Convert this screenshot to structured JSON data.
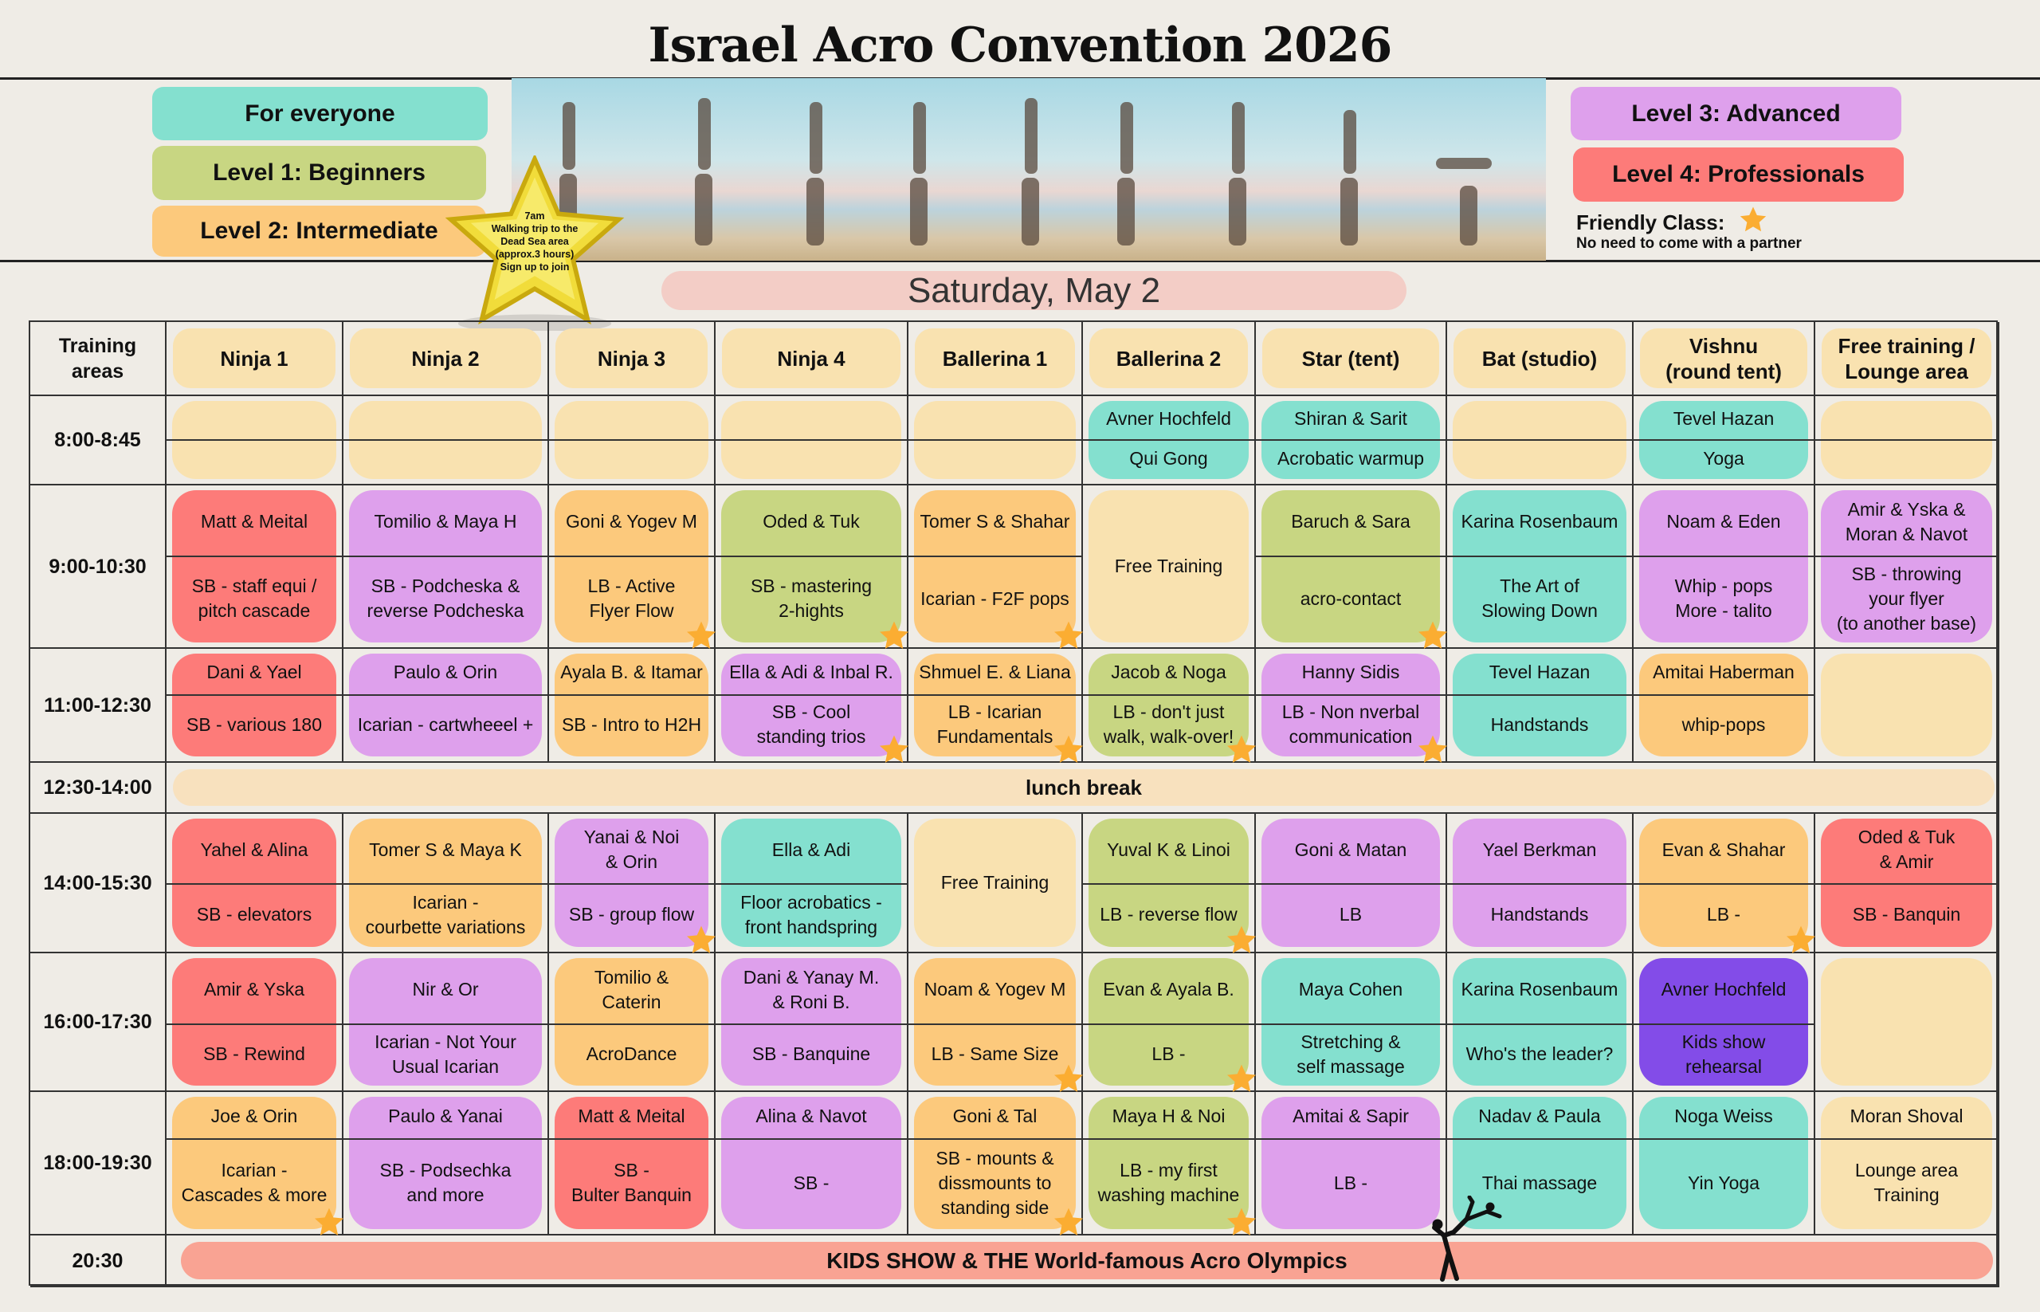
{
  "title": "Israel Acro Convention 2026",
  "legend": {
    "everyone": {
      "label": "For everyone",
      "color": "#84e0cf"
    },
    "level1": {
      "label": "Level 1: Beginners",
      "color": "#c8d682"
    },
    "level2": {
      "label": "Level 2: Intermediate",
      "color": "#fcc97c"
    },
    "level3": {
      "label": "Level 3: Advanced",
      "color": "#dea0ec"
    },
    "level4": {
      "label": "Level 4: Professionals",
      "color": "#fd7b79"
    },
    "friendly_label": "Friendly Class:",
    "friendly_note": "No need to come with a partner",
    "friendly_icon": "star-icon"
  },
  "trip_star": {
    "text": "7am\nWalking trip to the\nDead Sea area\n(approx.3 hours)\nSign up to join"
  },
  "date": "Saturday, May 2",
  "colors": {
    "teal": "#84e0cf",
    "green": "#c8d682",
    "orange": "#fcc97c",
    "purple": "#dea0ec",
    "red": "#fd7b79",
    "cream": "#f9e2b0",
    "violet": "#834ce8",
    "star": "#fbad32"
  },
  "schedule": {
    "corner": "Training\nareas",
    "areas": [
      "Ninja 1",
      "Ninja 2",
      "Ninja 3",
      "Ninja 4",
      "Ballerina 1",
      "Ballerina 2",
      "Star (tent)",
      "Bat (studio)",
      "Vishnu\n(round tent)",
      "Free training /\nLounge area"
    ],
    "rows": [
      {
        "time": "8:00-8:45",
        "cells": [
          {
            "c": "cream",
            "t": "",
            "b": ""
          },
          {
            "c": "cream",
            "t": "",
            "b": ""
          },
          {
            "c": "cream",
            "t": "",
            "b": ""
          },
          {
            "c": "cream",
            "t": "",
            "b": ""
          },
          {
            "c": "cream",
            "t": "",
            "b": ""
          },
          {
            "c": "teal",
            "t": "Avner Hochfeld",
            "b": "Qui Gong"
          },
          {
            "c": "teal",
            "t": "Shiran & Sarit",
            "b": "Acrobatic warmup"
          },
          {
            "c": "cream",
            "t": "",
            "b": ""
          },
          {
            "c": "teal",
            "t": "Tevel Hazan",
            "b": "Yoga"
          },
          {
            "c": "cream",
            "t": "",
            "b": ""
          }
        ]
      },
      {
        "time": "9:00-10:30",
        "cells": [
          {
            "c": "red",
            "t": "Matt & Meital",
            "b": "SB - staff equi /\npitch cascade"
          },
          {
            "c": "purple",
            "t": "Tomilio & Maya H",
            "b": "SB - Podcheska &\nreverse Podcheska"
          },
          {
            "c": "orange",
            "t": "Goni & Yogev M",
            "b": "LB - Active\nFlyer Flow",
            "star": true
          },
          {
            "c": "green",
            "t": "Oded & Tuk",
            "b": "SB - mastering\n2-hights",
            "star": true
          },
          {
            "c": "orange",
            "t": "Tomer S & Shahar",
            "b": "Icarian - F2F pops",
            "star": true
          },
          {
            "c": "cream",
            "free": "Free Training"
          },
          {
            "c": "green",
            "t": "Baruch & Sara",
            "b": "acro-contact",
            "star": true
          },
          {
            "c": "teal",
            "t": "Karina Rosenbaum",
            "b": "The Art of\nSlowing Down"
          },
          {
            "c": "purple",
            "t": "Noam & Eden",
            "b": "Whip - pops\nMore - talito"
          },
          {
            "c": "purple",
            "t": "Amir & Yska &\nMoran & Navot",
            "b": "SB -  throwing\nyour flyer\n(to another base)"
          }
        ]
      },
      {
        "time": "11:00-12:30",
        "cells": [
          {
            "c": "red",
            "t": "Dani & Yael",
            "b": "SB - various 180"
          },
          {
            "c": "purple",
            "t": "Paulo & Orin",
            "b": "Icarian - cartwheeel +"
          },
          {
            "c": "orange",
            "t": "Ayala B. & Itamar",
            "b": "SB - Intro to H2H"
          },
          {
            "c": "purple",
            "t": "Ella & Adi & Inbal R.",
            "b": "SB - Cool\nstanding trios",
            "star": true
          },
          {
            "c": "orange",
            "t": "Shmuel E. & Liana",
            "b": "LB - Icarian\nFundamentals",
            "star": true
          },
          {
            "c": "green",
            "t": "Jacob & Noga",
            "b": "LB - don't just\nwalk, walk-over!",
            "star": true
          },
          {
            "c": "purple",
            "t": "Hanny Sidis",
            "b": "LB - Non nverbal\ncommunication",
            "star": true
          },
          {
            "c": "teal",
            "t": "Tevel Hazan",
            "b": "Handstands"
          },
          {
            "c": "orange",
            "t": "Amitai Haberman",
            "b": "whip-pops"
          },
          {
            "c": "cream",
            "t": "",
            "b": "",
            "noline": true
          }
        ]
      },
      {
        "time": "12:30-14:00",
        "lunch": "lunch break"
      },
      {
        "time": "14:00-15:30",
        "cells": [
          {
            "c": "red",
            "t": "Yahel & Alina",
            "b": "SB - elevators"
          },
          {
            "c": "orange",
            "t": "Tomer S & Maya K",
            "b": "Icarian -\ncourbette variations"
          },
          {
            "c": "purple",
            "t": "Yanai & Noi\n& Orin",
            "b": "SB - group flow",
            "star": true
          },
          {
            "c": "teal",
            "t": "Ella & Adi",
            "b": "Floor acrobatics -\nfront handspring"
          },
          {
            "c": "cream",
            "free": "Free Training"
          },
          {
            "c": "green",
            "t": "Yuval K & Linoi",
            "b": "LB - reverse flow",
            "star": true
          },
          {
            "c": "purple",
            "t": "Goni & Matan",
            "b": "LB"
          },
          {
            "c": "purple",
            "t": "Yael Berkman",
            "b": "Handstands"
          },
          {
            "c": "orange",
            "t": "Evan & Shahar",
            "b": "LB -",
            "star": true
          },
          {
            "c": "red",
            "t": "Oded & Tuk\n& Amir",
            "b": "SB - Banquin"
          }
        ]
      },
      {
        "time": "16:00-17:30",
        "cells": [
          {
            "c": "red",
            "t": "Amir & Yska",
            "b": "SB - Rewind"
          },
          {
            "c": "purple",
            "t": "Nir & Or",
            "b": "Icarian - Not Your\nUsual Icarian"
          },
          {
            "c": "orange",
            "t": "Tomilio &\nCaterin",
            "b": "AcroDance"
          },
          {
            "c": "purple",
            "t": "Dani & Yanay M.\n& Roni B.",
            "b": "SB - Banquine"
          },
          {
            "c": "orange",
            "t": "Noam & Yogev M",
            "b": "LB - Same Size",
            "star": true
          },
          {
            "c": "green",
            "t": "Evan & Ayala B.",
            "b": "LB -",
            "star": true
          },
          {
            "c": "teal",
            "t": "Maya Cohen",
            "b": "Stretching &\nself massage"
          },
          {
            "c": "teal",
            "t": "Karina Rosenbaum",
            "b": "Who's the leader?"
          },
          {
            "c": "violet",
            "t": "Avner Hochfeld",
            "b": "Kids show\nrehearsal"
          },
          {
            "c": "cream",
            "t": "",
            "b": "",
            "noline": true
          }
        ]
      },
      {
        "time": "18:00-19:30",
        "cells": [
          {
            "c": "orange",
            "t": "Joe & Orin",
            "b": "Icarian -\nCascades & more",
            "star": true
          },
          {
            "c": "purple",
            "t": "Paulo & Yanai",
            "b": "SB - Podsechka\nand more"
          },
          {
            "c": "red",
            "t": "Matt & Meital",
            "b": "SB -\nBulter Banquin"
          },
          {
            "c": "purple",
            "t": "Alina & Navot",
            "b": "SB -"
          },
          {
            "c": "orange",
            "t": "Goni & Tal",
            "b": "SB - mounts &\ndissmounts to\nstanding side",
            "star": true
          },
          {
            "c": "green",
            "t": "Maya H & Noi",
            "b": "LB - my first\nwashing machine",
            "star": true
          },
          {
            "c": "purple",
            "t": "Amitai & Sapir",
            "b": "LB -"
          },
          {
            "c": "teal",
            "t": "Nadav & Paula",
            "b": "Thai massage"
          },
          {
            "c": "teal",
            "t": "Noga Weiss",
            "b": "Yin Yoga"
          },
          {
            "c": "cream",
            "t": "Moran Shoval",
            "b": "Lounge area\nTraining"
          }
        ]
      },
      {
        "time": "20:30",
        "kids": "KIDS SHOW & THE World-famous Acro Olympics"
      }
    ]
  }
}
